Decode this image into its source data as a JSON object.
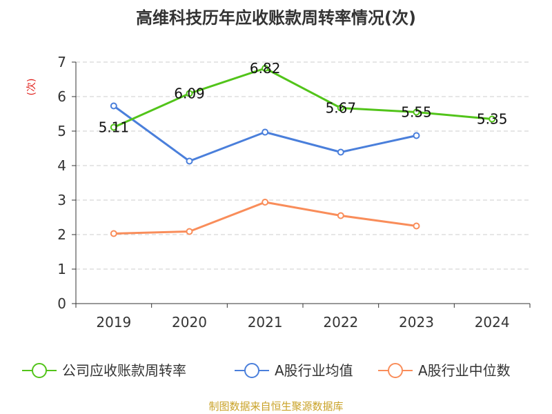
{
  "chart_data": {
    "type": "line",
    "title": "高维科技历年应收账款周转率情况(次)",
    "ylabel": "(次)",
    "xlabel": "",
    "categories": [
      "2019",
      "2020",
      "2021",
      "2022",
      "2023",
      "2024"
    ],
    "ylim": [
      0,
      7
    ],
    "yticks": [
      "0",
      "1",
      "2",
      "3",
      "4",
      "5",
      "6",
      "7"
    ],
    "grid": true,
    "legend_position": "bottom",
    "series": [
      {
        "name": "公司应收账款周转率",
        "color": "#52c41a",
        "values": [
          5.11,
          6.09,
          6.82,
          5.67,
          5.55,
          5.35
        ],
        "labels": [
          "5.11",
          "6.09",
          "6.82",
          "5.67",
          "5.55",
          "5.35"
        ]
      },
      {
        "name": "A股行业均值",
        "color": "#4a7fdb",
        "values": [
          5.73,
          4.13,
          4.97,
          4.39,
          4.87,
          null
        ]
      },
      {
        "name": "A股行业中位数",
        "color": "#f98d5a",
        "values": [
          2.03,
          2.09,
          2.94,
          2.55,
          2.25,
          null
        ]
      }
    ]
  },
  "footer": {
    "source": "制图数据来自恒生聚源数据库"
  }
}
